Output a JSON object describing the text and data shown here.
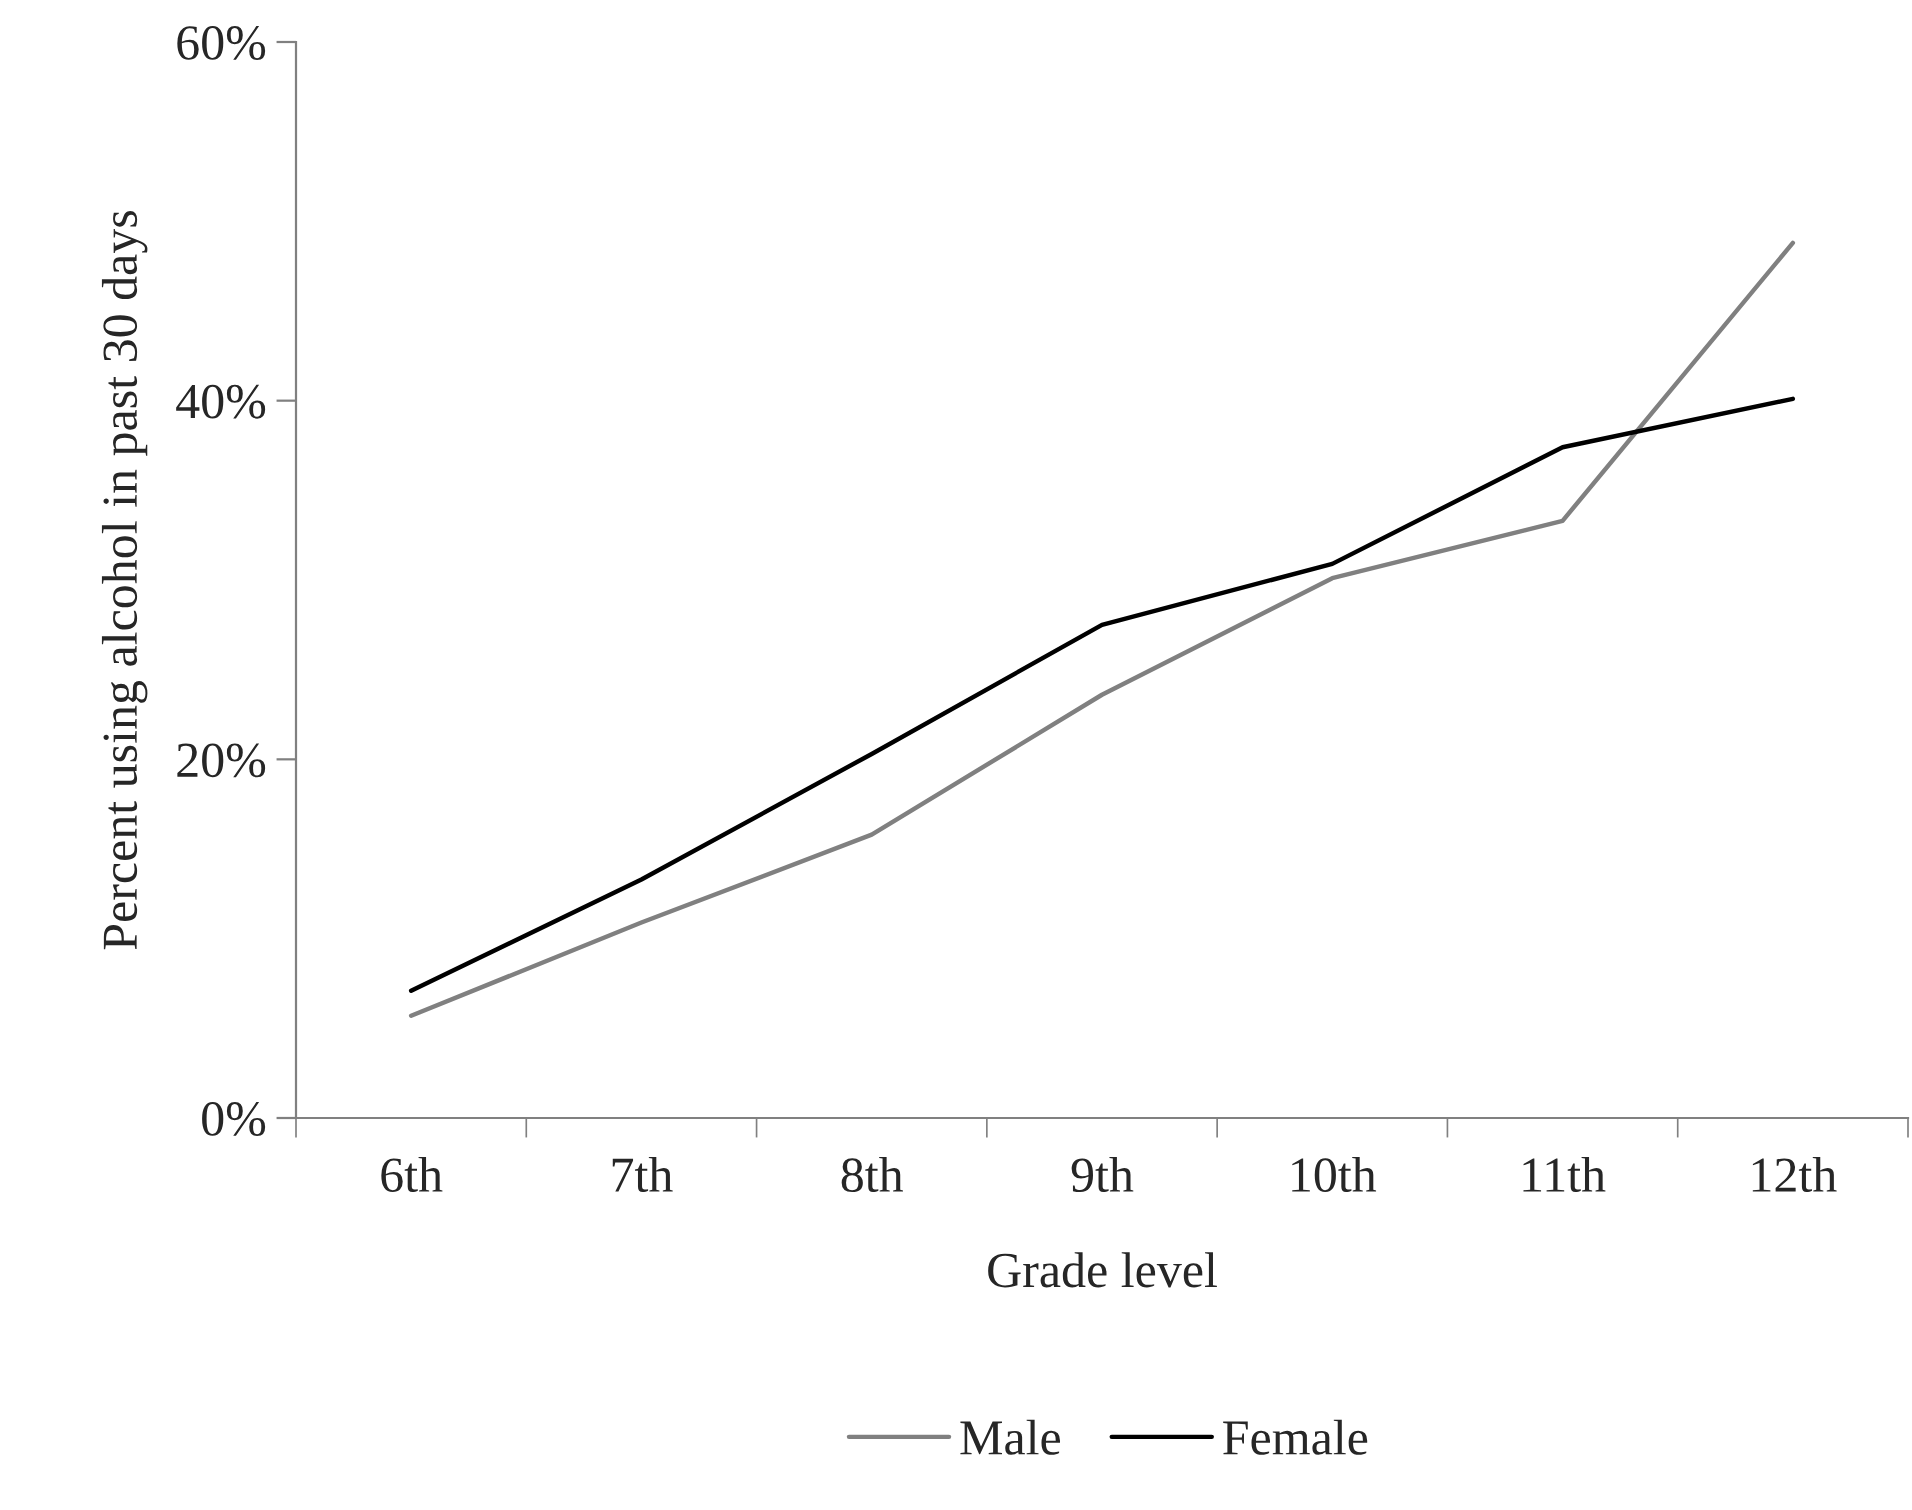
{
  "chart_data": {
    "type": "line",
    "xlabel": "Grade level",
    "ylabel": "Percent using alcohol in past 30 days",
    "categories": [
      "6th",
      "7th",
      "8th",
      "9th",
      "10th",
      "11th",
      "12th"
    ],
    "series": [
      {
        "name": "Male",
        "color": "#808080",
        "values": [
          5.7,
          10.9,
          15.8,
          23.6,
          30.1,
          33.3,
          48.8
        ]
      },
      {
        "name": "Female",
        "color": "#000000",
        "values": [
          7.1,
          13.3,
          20.3,
          27.5,
          30.9,
          37.4,
          40.1
        ]
      }
    ],
    "ylim": [
      0,
      60
    ],
    "yticks": [
      {
        "value": 0,
        "label": "0%"
      },
      {
        "value": 20,
        "label": "20%"
      },
      {
        "value": 40,
        "label": "40%"
      },
      {
        "value": 60,
        "label": "60%"
      }
    ],
    "grid": false,
    "legend": "bottom",
    "marker": "none",
    "line_style": "solid"
  }
}
